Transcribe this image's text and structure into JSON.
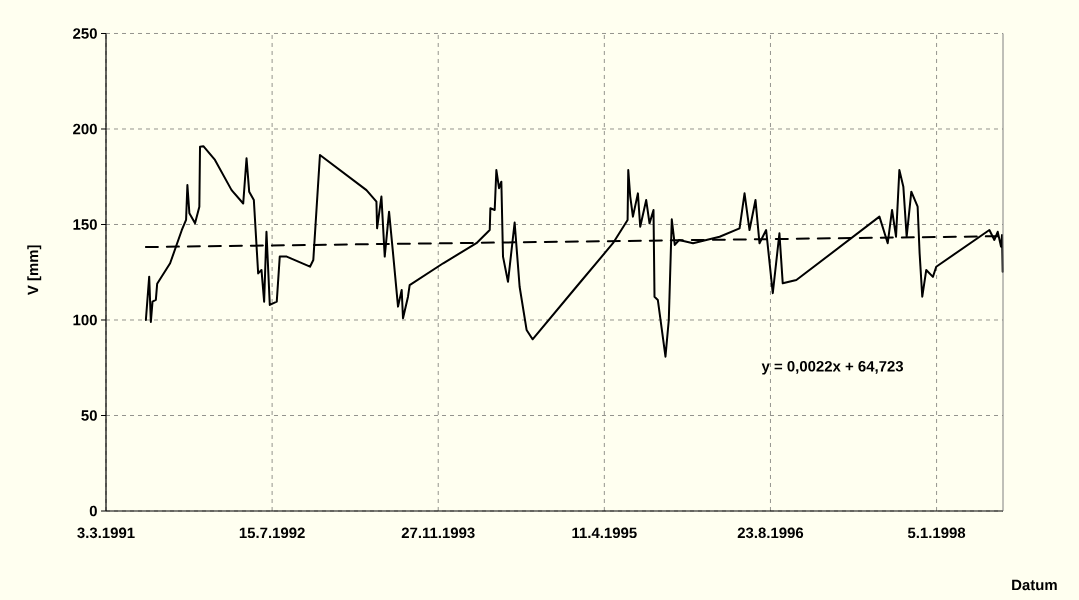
{
  "chart_data": {
    "type": "line",
    "ylabel": "V [mm]",
    "xlabel": "Datum",
    "xlim": [
      "1991-03-03",
      "1998-07-24"
    ],
    "xticks": [
      {
        "value": "1991-03-03",
        "label": "3.3.1991"
      },
      {
        "value": "1992-07-15",
        "label": "15.7.1992"
      },
      {
        "value": "1993-11-27",
        "label": "27.11.1993"
      },
      {
        "value": "1995-04-11",
        "label": "11.4.1995"
      },
      {
        "value": "1996-08-23",
        "label": "23.8.1996"
      },
      {
        "value": "1998-01-05",
        "label": "5.1.1998"
      }
    ],
    "ylim": [
      0,
      250
    ],
    "yticks": [
      0,
      50,
      100,
      150,
      200,
      250
    ],
    "grid": true,
    "annotations": [
      "y = 0,0022x + 64,723"
    ],
    "series": [
      {
        "color": "#000000",
        "line_style": "solid",
        "x": [
          "1991-07-01",
          "1991-07-11",
          "1991-07-16",
          "1991-07-21",
          "1991-07-31",
          "1991-08-04",
          "1991-09-12",
          "1991-10-17",
          "1991-10-30",
          "1991-11-03",
          "1991-11-09",
          "1991-11-26",
          "1991-12-09",
          "1991-12-11",
          "1991-12-21",
          "1992-01-25",
          "1992-03-15",
          "1992-04-19",
          "1992-04-29",
          "1992-05-07",
          "1992-05-21",
          "1992-06-03",
          "1992-06-13",
          "1992-06-21",
          "1992-06-28",
          "1992-07-08",
          "1992-07-29",
          "1992-08-07",
          "1992-08-28",
          "1992-11-06",
          "1992-11-16",
          "1992-12-06",
          "1993-04-25",
          "1993-05-25",
          "1993-05-27",
          "1993-06-09",
          "1993-06-19",
          "1993-07-02",
          "1993-07-14",
          "1993-07-29",
          "1993-08-09",
          "1993-08-13",
          "1993-08-28",
          "1993-09-02",
          "1993-12-12",
          "1994-03-22",
          "1994-05-01",
          "1994-05-03",
          "1994-05-16",
          "1994-05-21",
          "1994-05-29",
          "1994-06-05",
          "1994-06-10",
          "1994-06-25",
          "1994-07-15",
          "1994-07-30",
          "1994-08-20",
          "1994-09-07",
          "1995-01-17",
          "1995-05-07",
          "1995-06-20",
          "1995-06-22",
          "1995-06-28",
          "1995-07-06",
          "1995-07-21",
          "1995-07-28",
          "1995-08-15",
          "1995-08-25",
          "1995-09-06",
          "1995-09-09",
          "1995-09-19",
          "1995-10-12",
          "1995-10-22",
          "1995-10-31",
          "1995-11-09",
          "1995-11-22",
          "1996-01-03",
          "1996-03-23",
          "1996-05-22",
          "1996-06-06",
          "1996-06-21",
          "1996-07-09",
          "1996-07-21",
          "1996-08-10",
          "1996-08-30",
          "1996-09-19",
          "1996-09-29",
          "1996-11-09",
          "1997-07-17",
          "1997-08-11",
          "1997-08-24",
          "1997-09-05",
          "1997-09-15",
          "1997-09-27",
          "1997-10-07",
          "1997-10-21",
          "1997-11-09",
          "1997-11-15",
          "1997-11-23",
          "1997-12-05",
          "1997-12-25",
          "1998-01-04",
          "1998-06-13",
          "1998-06-28",
          "1998-07-08",
          "1998-07-18",
          "1998-07-21",
          "1998-07-23"
        ],
        "values": [
          100,
          122.7,
          99,
          109.6,
          110.5,
          119,
          129.7,
          147,
          152.4,
          170.7,
          155.9,
          150.6,
          159.3,
          190.7,
          191,
          183.8,
          168,
          161,
          184.7,
          167.2,
          162.8,
          124.4,
          126.2,
          109.6,
          146.2,
          107.9,
          109.6,
          133.2,
          133.2,
          127.9,
          131.4,
          186.4,
          168,
          162,
          148,
          164.6,
          133.2,
          156.7,
          134.9,
          107,
          115.7,
          100.9,
          112.2,
          118.3,
          129.7,
          140.2,
          147.1,
          158.5,
          157.6,
          178.5,
          169,
          172.4,
          133.2,
          120,
          151,
          117.4,
          94.8,
          89.9,
          117.4,
          140.2,
          152.4,
          178.5,
          164.6,
          154.1,
          166.3,
          148.8,
          162.8,
          150.6,
          157.6,
          112.2,
          110.5,
          80.8,
          100,
          152.7,
          139.3,
          141.9,
          140.2,
          143.6,
          148,
          166.3,
          147.1,
          162.8,
          140.2,
          147.1,
          114,
          145.4,
          119.2,
          120.9,
          154.1,
          140.2,
          157.6,
          143.6,
          178.5,
          169.8,
          143.6,
          167.2,
          159.3,
          134.9,
          112.2,
          126.2,
          122.6,
          127.9,
          147.1,
          141.9,
          146.2,
          138.4,
          144.5,
          125.3
        ]
      },
      {
        "type": "line",
        "color": "#000000",
        "line_style": "dashed",
        "x": [
          "1991-07-01",
          "1998-07-23"
        ],
        "values": [
          138.2,
          143.9
        ]
      }
    ]
  }
}
